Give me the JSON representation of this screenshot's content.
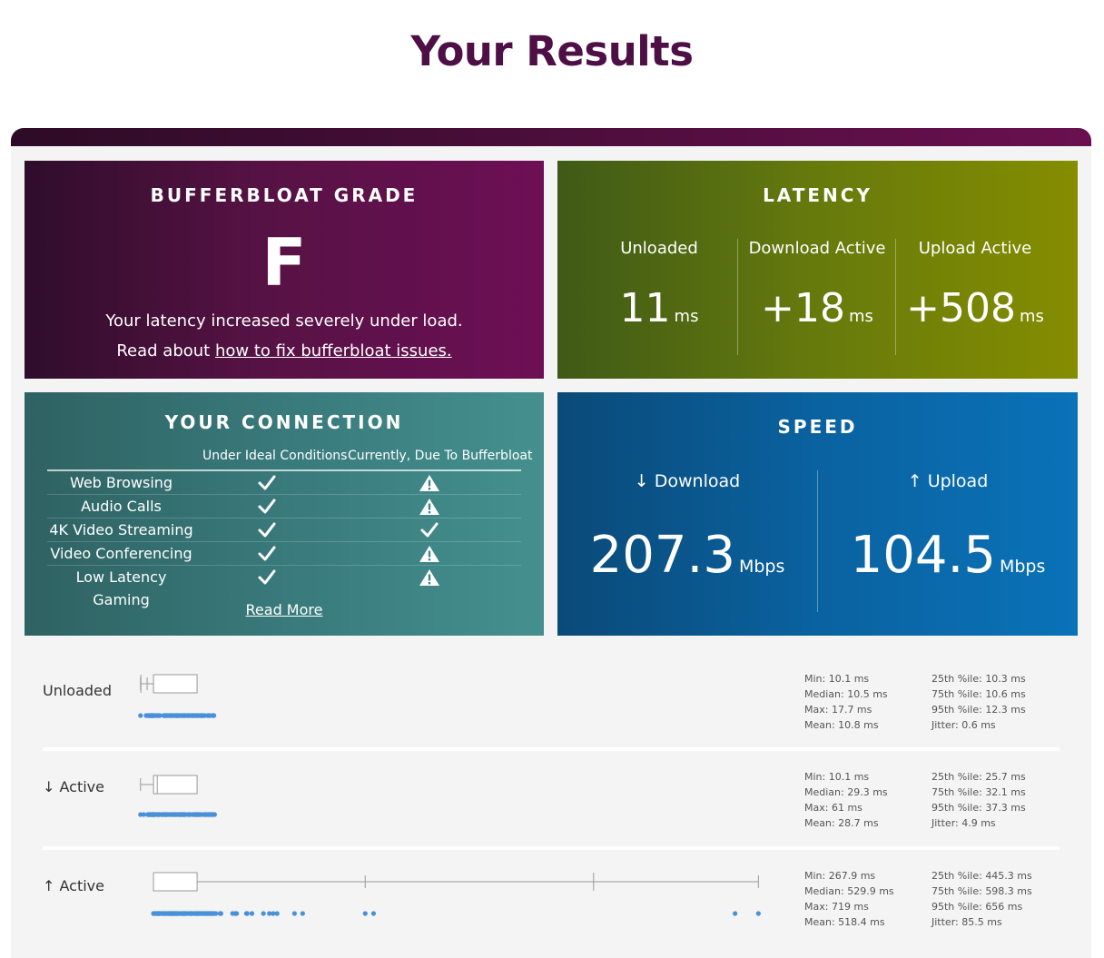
{
  "page": {
    "title": "Your Results"
  },
  "grade": {
    "title": "BUFFERBLOAT GRADE",
    "letter": "F",
    "desc": "Your latency increased severely under load.",
    "read_prefix": "Read about ",
    "read_link": "how to fix bufferbloat issues."
  },
  "latency": {
    "title": "LATENCY",
    "unloaded_label": "Unloaded",
    "unloaded_value": "11",
    "unloaded_unit": "ms",
    "download_label": "Download Active",
    "download_value": "+18",
    "download_unit": "ms",
    "upload_label": "Upload Active",
    "upload_value": "+508",
    "upload_unit": "ms"
  },
  "connection": {
    "title": "YOUR CONNECTION",
    "col_ideal": "Under Ideal Conditions",
    "col_now": "Currently, Due To Bufferbloat",
    "rows": [
      {
        "name": "Web Browsing",
        "ideal": "check",
        "now": "warning"
      },
      {
        "name": "Audio Calls",
        "ideal": "check",
        "now": "warning"
      },
      {
        "name": "4K Video Streaming",
        "ideal": "check",
        "now": "check"
      },
      {
        "name": "Video Conferencing",
        "ideal": "check",
        "now": "warning"
      },
      {
        "name": "Low Latency Gaming",
        "ideal": "check",
        "now": "warning"
      }
    ],
    "read_more": "Read More"
  },
  "speed": {
    "title": "SPEED",
    "download_arrow": "↓",
    "download_label": "Download",
    "download_value": "207.3",
    "download_unit": "Mbps",
    "upload_arrow": "↑",
    "upload_label": "Upload",
    "upload_value": "104.5",
    "upload_unit": "Mbps"
  },
  "stats": {
    "unloaded": {
      "label": "Unloaded",
      "min": "Min: 10.1 ms",
      "median": "Median: 10.5 ms",
      "max": "Max: 17.7 ms",
      "mean": "Mean: 10.8 ms",
      "p25": "25th %ile: 10.3 ms",
      "p75": "75th %ile: 10.6 ms",
      "p95": "95th %ile: 12.3 ms",
      "jitter": "Jitter: 0.6 ms"
    },
    "download": {
      "label": "↓ Active",
      "min": "Min: 10.1 ms",
      "median": "Median: 29.3 ms",
      "max": "Max: 61 ms",
      "mean": "Mean: 28.7 ms",
      "p25": "25th %ile: 25.7 ms",
      "p75": "75th %ile: 32.1 ms",
      "p95": "95th %ile: 37.3 ms",
      "jitter": "Jitter: 4.9 ms"
    },
    "upload": {
      "label": "↑ Active",
      "min": "Min: 267.9 ms",
      "median": "Median: 529.9 ms",
      "max": "Max: 719 ms",
      "mean": "Mean: 518.4 ms",
      "p25": "25th %ile: 445.3 ms",
      "p75": "75th %ile: 598.3 ms",
      "p95": "95th %ile: 656 ms",
      "jitter": "Jitter: 85.5 ms"
    }
  },
  "colors": {
    "title": "#4d0f46",
    "dot": "#4a90d9",
    "box": "#999999"
  },
  "icons": {
    "check": "check-icon",
    "warning": "warning-icon"
  }
}
